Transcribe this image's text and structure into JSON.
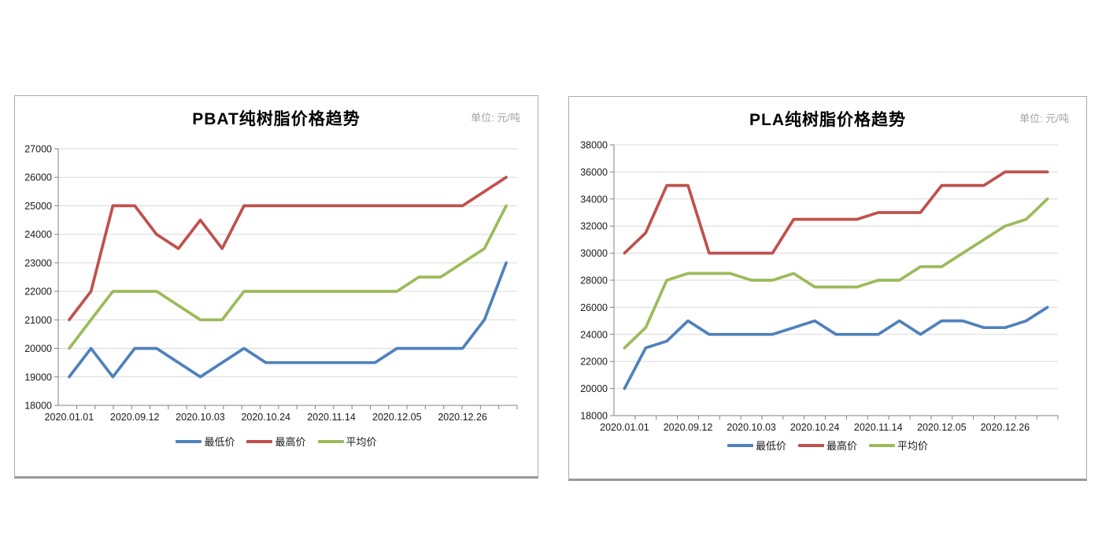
{
  "theme": {
    "grid_color": "#d9d9d9",
    "axis_color": "#808080",
    "text_color": "#1a1a1a",
    "unit_text_color": "#a9a1a4",
    "series_blue": "#4F81BD",
    "series_red": "#C0504D",
    "series_green": "#9BBB59"
  },
  "chart_data": [
    {
      "type": "line",
      "title": "PBAT纯树脂价格趋势",
      "unit_label": "单位: 元/吨",
      "legend_position": "bottom",
      "grid": true,
      "y_axis": {
        "min": 18000,
        "max": 27000,
        "step": 1000,
        "tick_labels": [
          "18000",
          "19000",
          "20000",
          "21000",
          "22000",
          "23000",
          "24000",
          "25000",
          "26000",
          "27000"
        ]
      },
      "x_axis": {
        "labels": [
          "2020.01.01",
          "2020.09.12",
          "2020.10.03",
          "2020.10.24",
          "2020.11.14",
          "2020.12.05",
          "2020.12.26"
        ],
        "label_positions": [
          0,
          3,
          6,
          9,
          12,
          15,
          18
        ],
        "n_points": 21
      },
      "series": [
        {
          "name": "最低价",
          "color": "#4F81BD",
          "values": [
            19000,
            20000,
            19000,
            20000,
            20000,
            19500,
            19000,
            19500,
            20000,
            19500,
            19500,
            19500,
            19500,
            19500,
            19500,
            20000,
            20000,
            20000,
            20000,
            21000,
            23000
          ]
        },
        {
          "name": "最高价",
          "color": "#C0504D",
          "values": [
            21000,
            22000,
            25000,
            25000,
            24000,
            23500,
            24500,
            23500,
            25000,
            25000,
            25000,
            25000,
            25000,
            25000,
            25000,
            25000,
            25000,
            25000,
            25000,
            25500,
            26000
          ]
        },
        {
          "name": "平均价",
          "color": "#9BBB59",
          "values": [
            20000,
            21000,
            22000,
            22000,
            22000,
            21500,
            21000,
            21000,
            22000,
            22000,
            22000,
            22000,
            22000,
            22000,
            22000,
            22000,
            22500,
            22500,
            23000,
            23500,
            25000
          ]
        }
      ]
    },
    {
      "type": "line",
      "title": "PLA纯树脂价格趋势",
      "unit_label": "单位: 元/吨",
      "legend_position": "bottom",
      "grid": true,
      "y_axis": {
        "min": 18000,
        "max": 38000,
        "step": 2000,
        "tick_labels": [
          "18000",
          "20000",
          "22000",
          "24000",
          "26000",
          "28000",
          "30000",
          "32000",
          "34000",
          "36000",
          "38000"
        ]
      },
      "x_axis": {
        "labels": [
          "2020.01.01",
          "2020.09.12",
          "2020.10.03",
          "2020.10.24",
          "2020.11.14",
          "2020.12.05",
          "2020.12.26"
        ],
        "label_positions": [
          0,
          3,
          6,
          9,
          12,
          15,
          18
        ],
        "n_points": 21
      },
      "series": [
        {
          "name": "最低价",
          "color": "#4F81BD",
          "values": [
            20000,
            23000,
            23500,
            25000,
            24000,
            24000,
            24000,
            24000,
            24500,
            25000,
            24000,
            24000,
            24000,
            25000,
            24000,
            25000,
            25000,
            24500,
            24500,
            25000,
            26000
          ]
        },
        {
          "name": "最高价",
          "color": "#C0504D",
          "values": [
            30000,
            31500,
            35000,
            35000,
            30000,
            30000,
            30000,
            30000,
            32500,
            32500,
            32500,
            32500,
            33000,
            33000,
            33000,
            35000,
            35000,
            35000,
            36000,
            36000,
            36000
          ]
        },
        {
          "name": "平均价",
          "color": "#9BBB59",
          "values": [
            23000,
            24500,
            28000,
            28500,
            28500,
            28500,
            28000,
            28000,
            28500,
            27500,
            27500,
            27500,
            28000,
            28000,
            29000,
            29000,
            30000,
            31000,
            32000,
            32500,
            34000
          ]
        }
      ]
    }
  ]
}
